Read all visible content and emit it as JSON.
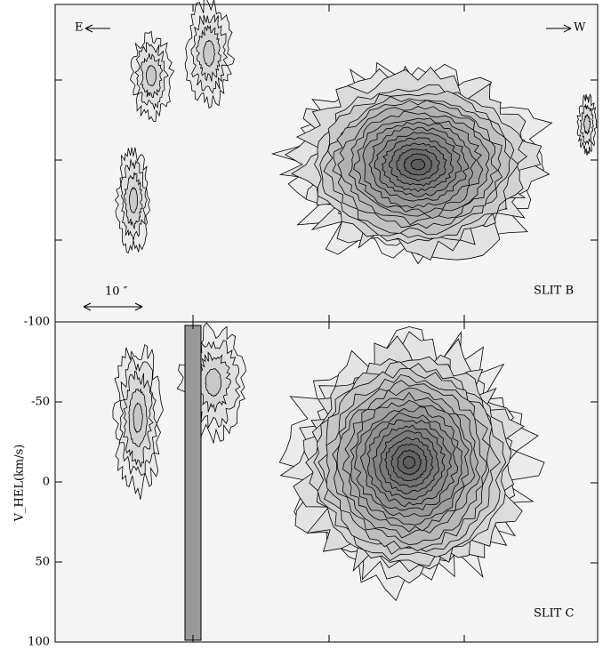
{
  "chart_data": [
    {
      "type": "image",
      "annotations": [
        "E",
        "W",
        "10 ″",
        "SLIT B"
      ]
    },
    {
      "type": "image",
      "ylabel": "V_HEL(km/s)",
      "ylim": [
        100,
        -100
      ],
      "yticks": [
        -100,
        -50,
        0,
        50,
        100
      ],
      "annotations": [
        "SLIT C"
      ]
    }
  ]
}
